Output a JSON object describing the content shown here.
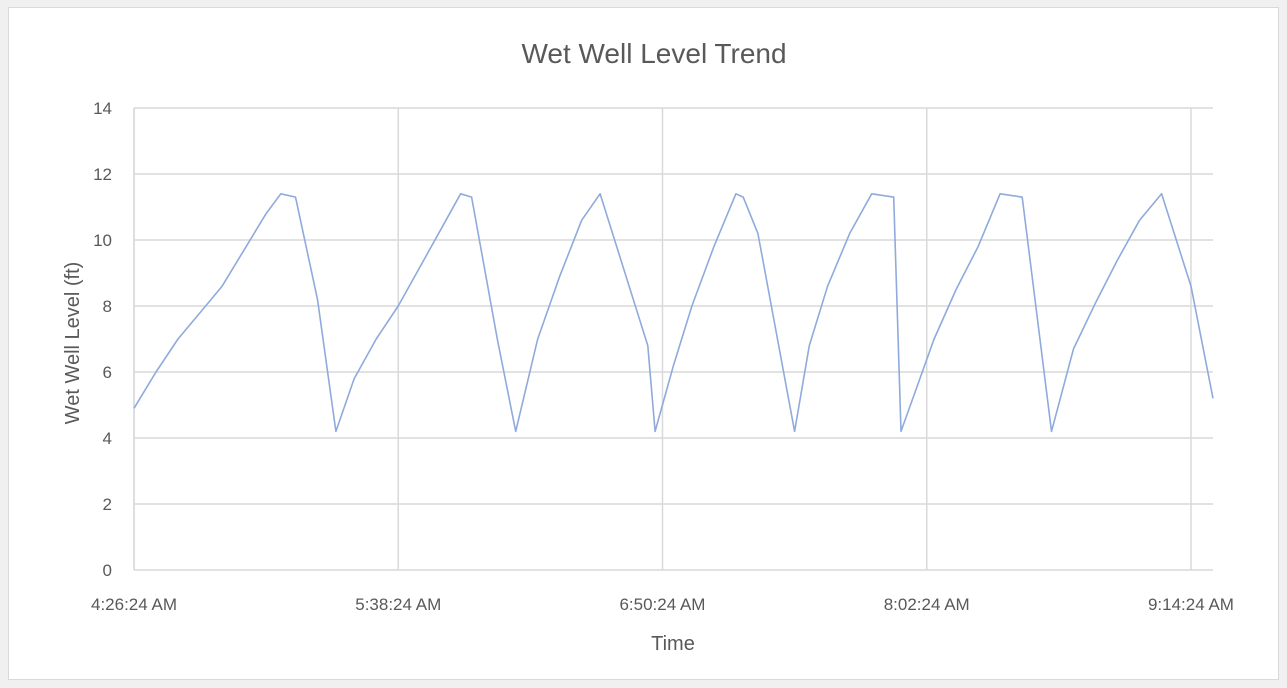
{
  "chart_data": {
    "type": "line",
    "title": "Wet Well Level Trend",
    "xlabel": "Time",
    "ylabel": "Wet Well Level (ft)",
    "xlim": [
      "4:26:24 AM",
      "9:20:24 AM"
    ],
    "ylim": [
      0,
      14
    ],
    "y_ticks": [
      0,
      2,
      4,
      6,
      8,
      10,
      12,
      14
    ],
    "x_ticks": [
      "4:26:24 AM",
      "5:38:24 AM",
      "6:50:24 AM",
      "8:02:24 AM",
      "9:14:24 AM"
    ],
    "grid": true,
    "series": [
      {
        "color": "#8faadc",
        "x": [
          "4:26:24 AM",
          "4:32:24 AM",
          "4:38:24 AM",
          "4:44:24 AM",
          "4:50:24 AM",
          "4:56:24 AM",
          "5:02:24 AM",
          "5:06:24 AM",
          "5:10:24 AM",
          "5:16:24 AM",
          "5:21:24 AM",
          "5:26:24 AM",
          "5:32:24 AM",
          "5:38:24 AM",
          "5:44:24 AM",
          "5:50:24 AM",
          "5:55:24 AM",
          "5:58:24 AM",
          "6:05:24 AM",
          "6:10:24 AM",
          "6:16:24 AM",
          "6:22:24 AM",
          "6:28:24 AM",
          "6:33:24 AM",
          "6:46:24 AM",
          "6:48:24 AM",
          "6:53:24 AM",
          "6:58:24 AM",
          "7:04:24 AM",
          "7:10:24 AM",
          "7:12:24 AM",
          "7:16:24 AM",
          "7:26:24 AM",
          "7:30:24 AM",
          "7:35:24 AM",
          "7:41:24 AM",
          "7:47:24 AM",
          "7:53:24 AM",
          "7:55:24 AM",
          "8:04:24 AM",
          "8:10:24 AM",
          "8:16:24 AM",
          "8:22:24 AM",
          "8:28:24 AM",
          "8:36:24 AM",
          "8:42:24 AM",
          "8:48:24 AM",
          "8:54:24 AM",
          "9:00:24 AM",
          "9:06:24 AM",
          "9:10:24 AM",
          "9:14:24 AM",
          "9:20:24 AM"
        ],
        "y": [
          4.9,
          6.0,
          7.0,
          7.8,
          8.6,
          9.7,
          10.8,
          11.4,
          11.3,
          8.2,
          4.2,
          5.8,
          7.0,
          8.0,
          9.2,
          10.4,
          11.4,
          11.3,
          7.0,
          4.2,
          7.0,
          8.9,
          10.6,
          11.4,
          6.8,
          4.2,
          6.2,
          8.0,
          9.8,
          11.4,
          11.3,
          10.2,
          4.2,
          6.8,
          8.6,
          10.2,
          11.4,
          11.3,
          4.2,
          7.0,
          8.5,
          9.8,
          11.4,
          11.3,
          4.2,
          6.7,
          8.1,
          9.4,
          10.6,
          11.4,
          10.0,
          8.6,
          5.2
        ]
      }
    ]
  }
}
